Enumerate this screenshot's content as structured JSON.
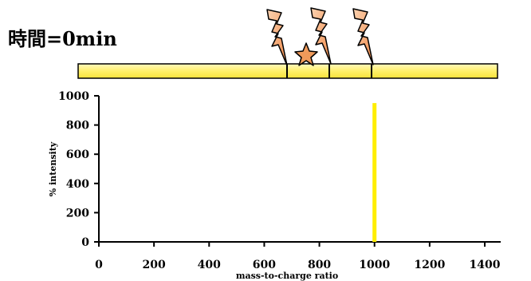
{
  "header": {
    "time_label": "時間=0min"
  },
  "colors": {
    "peptide_bar_fill": "#fff27a",
    "peptide_bar_stroke": "#000000",
    "bolt_fill": "#f5a46a",
    "star_fill": "#f09a5a",
    "spectrum_line": "#ffee00"
  },
  "icons": {
    "cleavage_marker": "lightning-bolt-icon",
    "label_marker": "star-icon"
  },
  "chart_data": {
    "type": "bar",
    "title": "",
    "xlabel": "mass-to-charge ratio",
    "ylabel": "% intensity",
    "xlim": [
      0,
      1400
    ],
    "ylim": [
      0,
      1000
    ],
    "x_ticks": [
      0,
      200,
      400,
      600,
      800,
      1000,
      1200,
      1400
    ],
    "y_ticks": [
      0,
      200,
      400,
      600,
      800,
      1000
    ],
    "grid": false,
    "series": [
      {
        "points": [
          {
            "x": 1000,
            "y": 950
          }
        ]
      }
    ]
  }
}
